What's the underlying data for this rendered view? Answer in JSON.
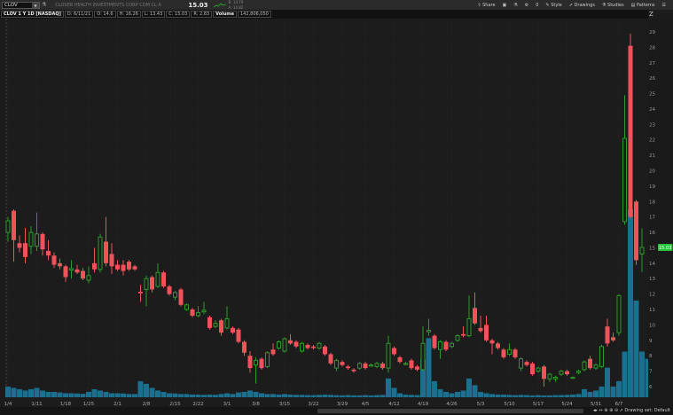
{
  "header": {
    "symbol": "CLOV",
    "company": "CLOSER HEALTH INVESTMENTS CORP COM CL A",
    "last": "15.03",
    "bid": "B: 14.79",
    "ask": "A: 14.82"
  },
  "toolbar": {
    "share": "Share",
    "alerts_count": "0",
    "style": "Style",
    "drawings": "Drawings",
    "studies": "Studies",
    "patterns": "Patterns"
  },
  "info": {
    "title": "CLOV 1 Y 1D [NASDAQ]",
    "date": "D: 6/11/21",
    "open": "O: 14.6",
    "high": "H: 16.26",
    "low": "L: 13.43",
    "close": "C: 15.03",
    "range": "R: 2.83",
    "volume_label": "Volume",
    "volume": "142,806,050"
  },
  "footer": {
    "drawing_set": "Drawing set: Default"
  },
  "colors": {
    "up": "#2a9a2a",
    "down": "#f0525a",
    "volume": "#1b6f8f",
    "last_tag": "#27c43a"
  },
  "chart_data": {
    "type": "candlestick",
    "y_ticks": [
      6,
      7,
      8,
      9,
      10,
      11,
      12,
      13,
      14,
      15,
      16,
      17,
      18,
      19,
      20,
      21,
      22,
      23,
      24,
      25,
      26,
      27,
      28,
      29
    ],
    "ylim": [
      5.5,
      29.5
    ],
    "x_ticks": [
      {
        "label": "1/4",
        "i": 0
      },
      {
        "label": "1/11",
        "i": 5
      },
      {
        "label": "1/18",
        "i": 10
      },
      {
        "label": "1/25",
        "i": 14
      },
      {
        "label": "2/1",
        "i": 19
      },
      {
        "label": "2/8",
        "i": 24
      },
      {
        "label": "2/15",
        "i": 29
      },
      {
        "label": "2/22",
        "i": 33
      },
      {
        "label": "3/1",
        "i": 38
      },
      {
        "label": "3/8",
        "i": 43
      },
      {
        "label": "3/15",
        "i": 48
      },
      {
        "label": "3/22",
        "i": 53
      },
      {
        "label": "3/29",
        "i": 58
      },
      {
        "label": "4/5",
        "i": 62
      },
      {
        "label": "4/12",
        "i": 67
      },
      {
        "label": "4/19",
        "i": 72
      },
      {
        "label": "4/26",
        "i": 77
      },
      {
        "label": "5/3",
        "i": 82
      },
      {
        "label": "5/10",
        "i": 87
      },
      {
        "label": "5/17",
        "i": 92
      },
      {
        "label": "5/24",
        "i": 97
      },
      {
        "label": "5/31",
        "i": 102
      },
      {
        "label": "6/7",
        "i": 106
      }
    ],
    "last_price_tag": "15.03",
    "ohlc": [
      [
        16.0,
        17.0,
        15.4,
        16.75
      ],
      [
        17.4,
        17.5,
        14.1,
        15.5
      ],
      [
        15.3,
        15.8,
        14.7,
        15.0
      ],
      [
        15.3,
        16.3,
        14.0,
        14.4
      ],
      [
        15.1,
        16.4,
        14.6,
        16.0
      ],
      [
        15.1,
        17.3,
        14.8,
        15.9
      ],
      [
        15.9,
        16.0,
        14.5,
        14.9
      ],
      [
        14.8,
        15.5,
        14.2,
        14.5
      ],
      [
        14.5,
        14.7,
        13.7,
        13.9
      ],
      [
        14.0,
        14.3,
        13.6,
        13.8
      ],
      [
        13.8,
        13.9,
        12.8,
        13.1
      ],
      [
        13.55,
        14.2,
        13.0,
        13.65
      ],
      [
        13.6,
        13.9,
        13.3,
        13.4
      ],
      [
        13.5,
        13.7,
        12.9,
        13.0
      ],
      [
        12.9,
        13.8,
        12.7,
        13.2
      ],
      [
        14.0,
        15.0,
        13.4,
        13.6
      ],
      [
        13.6,
        15.9,
        13.4,
        15.7
      ],
      [
        15.4,
        17.0,
        13.8,
        14.0
      ],
      [
        14.6,
        15.3,
        13.3,
        13.8
      ],
      [
        13.9,
        14.2,
        13.5,
        13.6
      ],
      [
        13.9,
        14.2,
        13.2,
        13.5
      ],
      [
        14.1,
        14.2,
        13.5,
        13.6
      ],
      [
        13.8,
        13.9,
        13.5,
        13.6
      ],
      [
        12.15,
        12.6,
        11.5,
        12.05
      ],
      [
        12.3,
        13.2,
        11.2,
        13.0
      ],
      [
        13.1,
        13.2,
        12.1,
        12.3
      ],
      [
        12.5,
        14.0,
        12.4,
        13.4
      ],
      [
        13.4,
        13.5,
        12.4,
        12.5
      ],
      [
        12.5,
        12.6,
        11.9,
        12.0
      ],
      [
        11.8,
        12.2,
        11.6,
        12.1
      ],
      [
        12.3,
        12.4,
        11.2,
        11.3
      ],
      [
        11.0,
        11.4,
        10.9,
        11.3
      ],
      [
        11.0,
        11.1,
        10.5,
        10.6
      ],
      [
        10.6,
        11.2,
        10.5,
        10.8
      ],
      [
        10.85,
        11.5,
        10.7,
        10.95
      ],
      [
        10.5,
        10.6,
        9.7,
        9.8
      ],
      [
        9.9,
        10.3,
        9.8,
        10.1
      ],
      [
        10.3,
        10.4,
        9.3,
        9.5
      ],
      [
        9.8,
        11.2,
        9.7,
        10.4
      ],
      [
        9.8,
        9.9,
        9.4,
        9.5
      ],
      [
        9.7,
        9.8,
        8.8,
        8.9
      ],
      [
        8.9,
        9.0,
        8.0,
        8.2
      ],
      [
        8.0,
        8.3,
        6.9,
        7.2
      ],
      [
        7.4,
        7.9,
        6.2,
        7.7
      ],
      [
        7.8,
        7.9,
        7.1,
        7.2
      ],
      [
        7.3,
        8.3,
        7.2,
        8.2
      ],
      [
        8.4,
        8.8,
        8.0,
        8.1
      ],
      [
        8.5,
        9.0,
        8.4,
        8.9
      ],
      [
        8.3,
        9.2,
        8.2,
        9.1
      ],
      [
        9.0,
        9.4,
        8.7,
        8.8
      ],
      [
        8.9,
        9.0,
        8.5,
        8.6
      ],
      [
        8.3,
        8.9,
        8.2,
        8.8
      ],
      [
        8.7,
        8.8,
        8.4,
        8.5
      ],
      [
        8.6,
        8.7,
        8.4,
        8.5
      ],
      [
        8.5,
        8.9,
        8.4,
        8.8
      ],
      [
        8.6,
        8.7,
        8.0,
        8.1
      ],
      [
        8.1,
        8.2,
        7.4,
        7.5
      ],
      [
        7.2,
        7.8,
        7.0,
        7.7
      ],
      [
        7.6,
        7.7,
        7.3,
        7.4
      ],
      [
        7.3,
        7.4,
        7.1,
        7.2
      ],
      [
        7.1,
        7.2,
        6.9,
        7.0
      ],
      [
        7.2,
        7.6,
        7.1,
        7.5
      ],
      [
        7.5,
        7.6,
        7.1,
        7.2
      ],
      [
        7.35,
        7.5,
        7.3,
        7.4
      ],
      [
        7.3,
        7.6,
        7.2,
        7.5
      ],
      [
        7.5,
        7.6,
        7.1,
        7.2
      ],
      [
        7.2,
        9.3,
        6.9,
        8.8
      ],
      [
        8.5,
        8.6,
        8.0,
        8.1
      ],
      [
        7.9,
        8.0,
        7.5,
        7.6
      ],
      [
        7.45,
        7.6,
        7.4,
        7.5
      ],
      [
        7.7,
        7.8,
        7.1,
        7.2
      ],
      [
        7.3,
        7.4,
        7.0,
        7.1
      ],
      [
        7.1,
        9.9,
        7.0,
        8.8
      ],
      [
        9.55,
        10.4,
        9.3,
        9.65
      ],
      [
        9.3,
        9.4,
        8.4,
        8.5
      ],
      [
        8.4,
        9.0,
        7.8,
        8.9
      ],
      [
        8.9,
        9.0,
        8.3,
        8.4
      ],
      [
        8.6,
        8.9,
        8.5,
        8.8
      ],
      [
        9.0,
        9.4,
        8.9,
        9.3
      ],
      [
        9.4,
        9.9,
        9.2,
        9.3
      ],
      [
        9.3,
        11.9,
        9.2,
        10.4
      ],
      [
        11.1,
        12.1,
        10.0,
        10.1
      ],
      [
        9.8,
        10.6,
        9.5,
        9.6
      ],
      [
        10.0,
        10.6,
        8.9,
        9.0
      ],
      [
        9.0,
        9.1,
        8.1,
        8.8
      ],
      [
        8.8,
        8.9,
        8.4,
        8.5
      ],
      [
        8.4,
        8.5,
        7.8,
        7.9
      ],
      [
        8.1,
        8.8,
        8.0,
        8.4
      ],
      [
        8.4,
        8.5,
        7.8,
        7.9
      ],
      [
        7.2,
        7.9,
        7.0,
        7.8
      ],
      [
        7.6,
        7.7,
        7.3,
        7.4
      ],
      [
        7.5,
        7.6,
        6.7,
        6.8
      ],
      [
        7.0,
        7.3,
        6.9,
        7.2
      ],
      [
        7.3,
        7.4,
        6.0,
        6.5
      ],
      [
        6.5,
        6.9,
        6.3,
        6.8
      ],
      [
        6.5,
        6.7,
        6.3,
        6.6
      ],
      [
        6.8,
        7.1,
        6.7,
        7.0
      ],
      [
        7.0,
        7.1,
        6.7,
        6.8
      ],
      [
        6.6,
        6.65,
        6.55,
        6.6
      ],
      [
        6.9,
        7.1,
        6.8,
        7.0
      ],
      [
        7.1,
        7.7,
        7.0,
        7.6
      ],
      [
        7.8,
        8.0,
        7.1,
        7.2
      ],
      [
        7.2,
        7.5,
        7.1,
        7.4
      ],
      [
        7.3,
        8.7,
        7.2,
        8.6
      ],
      [
        9.9,
        10.4,
        8.6,
        8.8
      ],
      [
        9.2,
        9.5,
        8.9,
        9.0
      ],
      [
        9.5,
        12.0,
        9.3,
        11.9
      ],
      [
        16.7,
        24.9,
        16.5,
        22.1
      ],
      [
        28.1,
        28.9,
        16.9,
        17.0
      ],
      [
        18.0,
        18.1,
        13.9,
        14.2
      ],
      [
        14.6,
        16.26,
        13.43,
        15.03
      ]
    ],
    "volume_millions": [
      40,
      35,
      30,
      25,
      30,
      35,
      25,
      20,
      20,
      18,
      15,
      15,
      14,
      13,
      20,
      30,
      25,
      20,
      15,
      15,
      14,
      12,
      12,
      60,
      50,
      35,
      25,
      20,
      15,
      14,
      12,
      12,
      10,
      10,
      9,
      10,
      9,
      12,
      15,
      12,
      18,
      20,
      25,
      20,
      15,
      12,
      12,
      10,
      12,
      10,
      9,
      9,
      8,
      8,
      9,
      10,
      9,
      8,
      7,
      8,
      7,
      7,
      8,
      7,
      8,
      9,
      70,
      35,
      15,
      10,
      9,
      8,
      140,
      220,
      60,
      30,
      20,
      15,
      20,
      25,
      70,
      45,
      20,
      15,
      12,
      10,
      10,
      9,
      8,
      9,
      8,
      7,
      8,
      7,
      7,
      8,
      8,
      9,
      10,
      12,
      30,
      20,
      25,
      40,
      110,
      40,
      60,
      170,
      700,
      360,
      170,
      143
    ]
  }
}
